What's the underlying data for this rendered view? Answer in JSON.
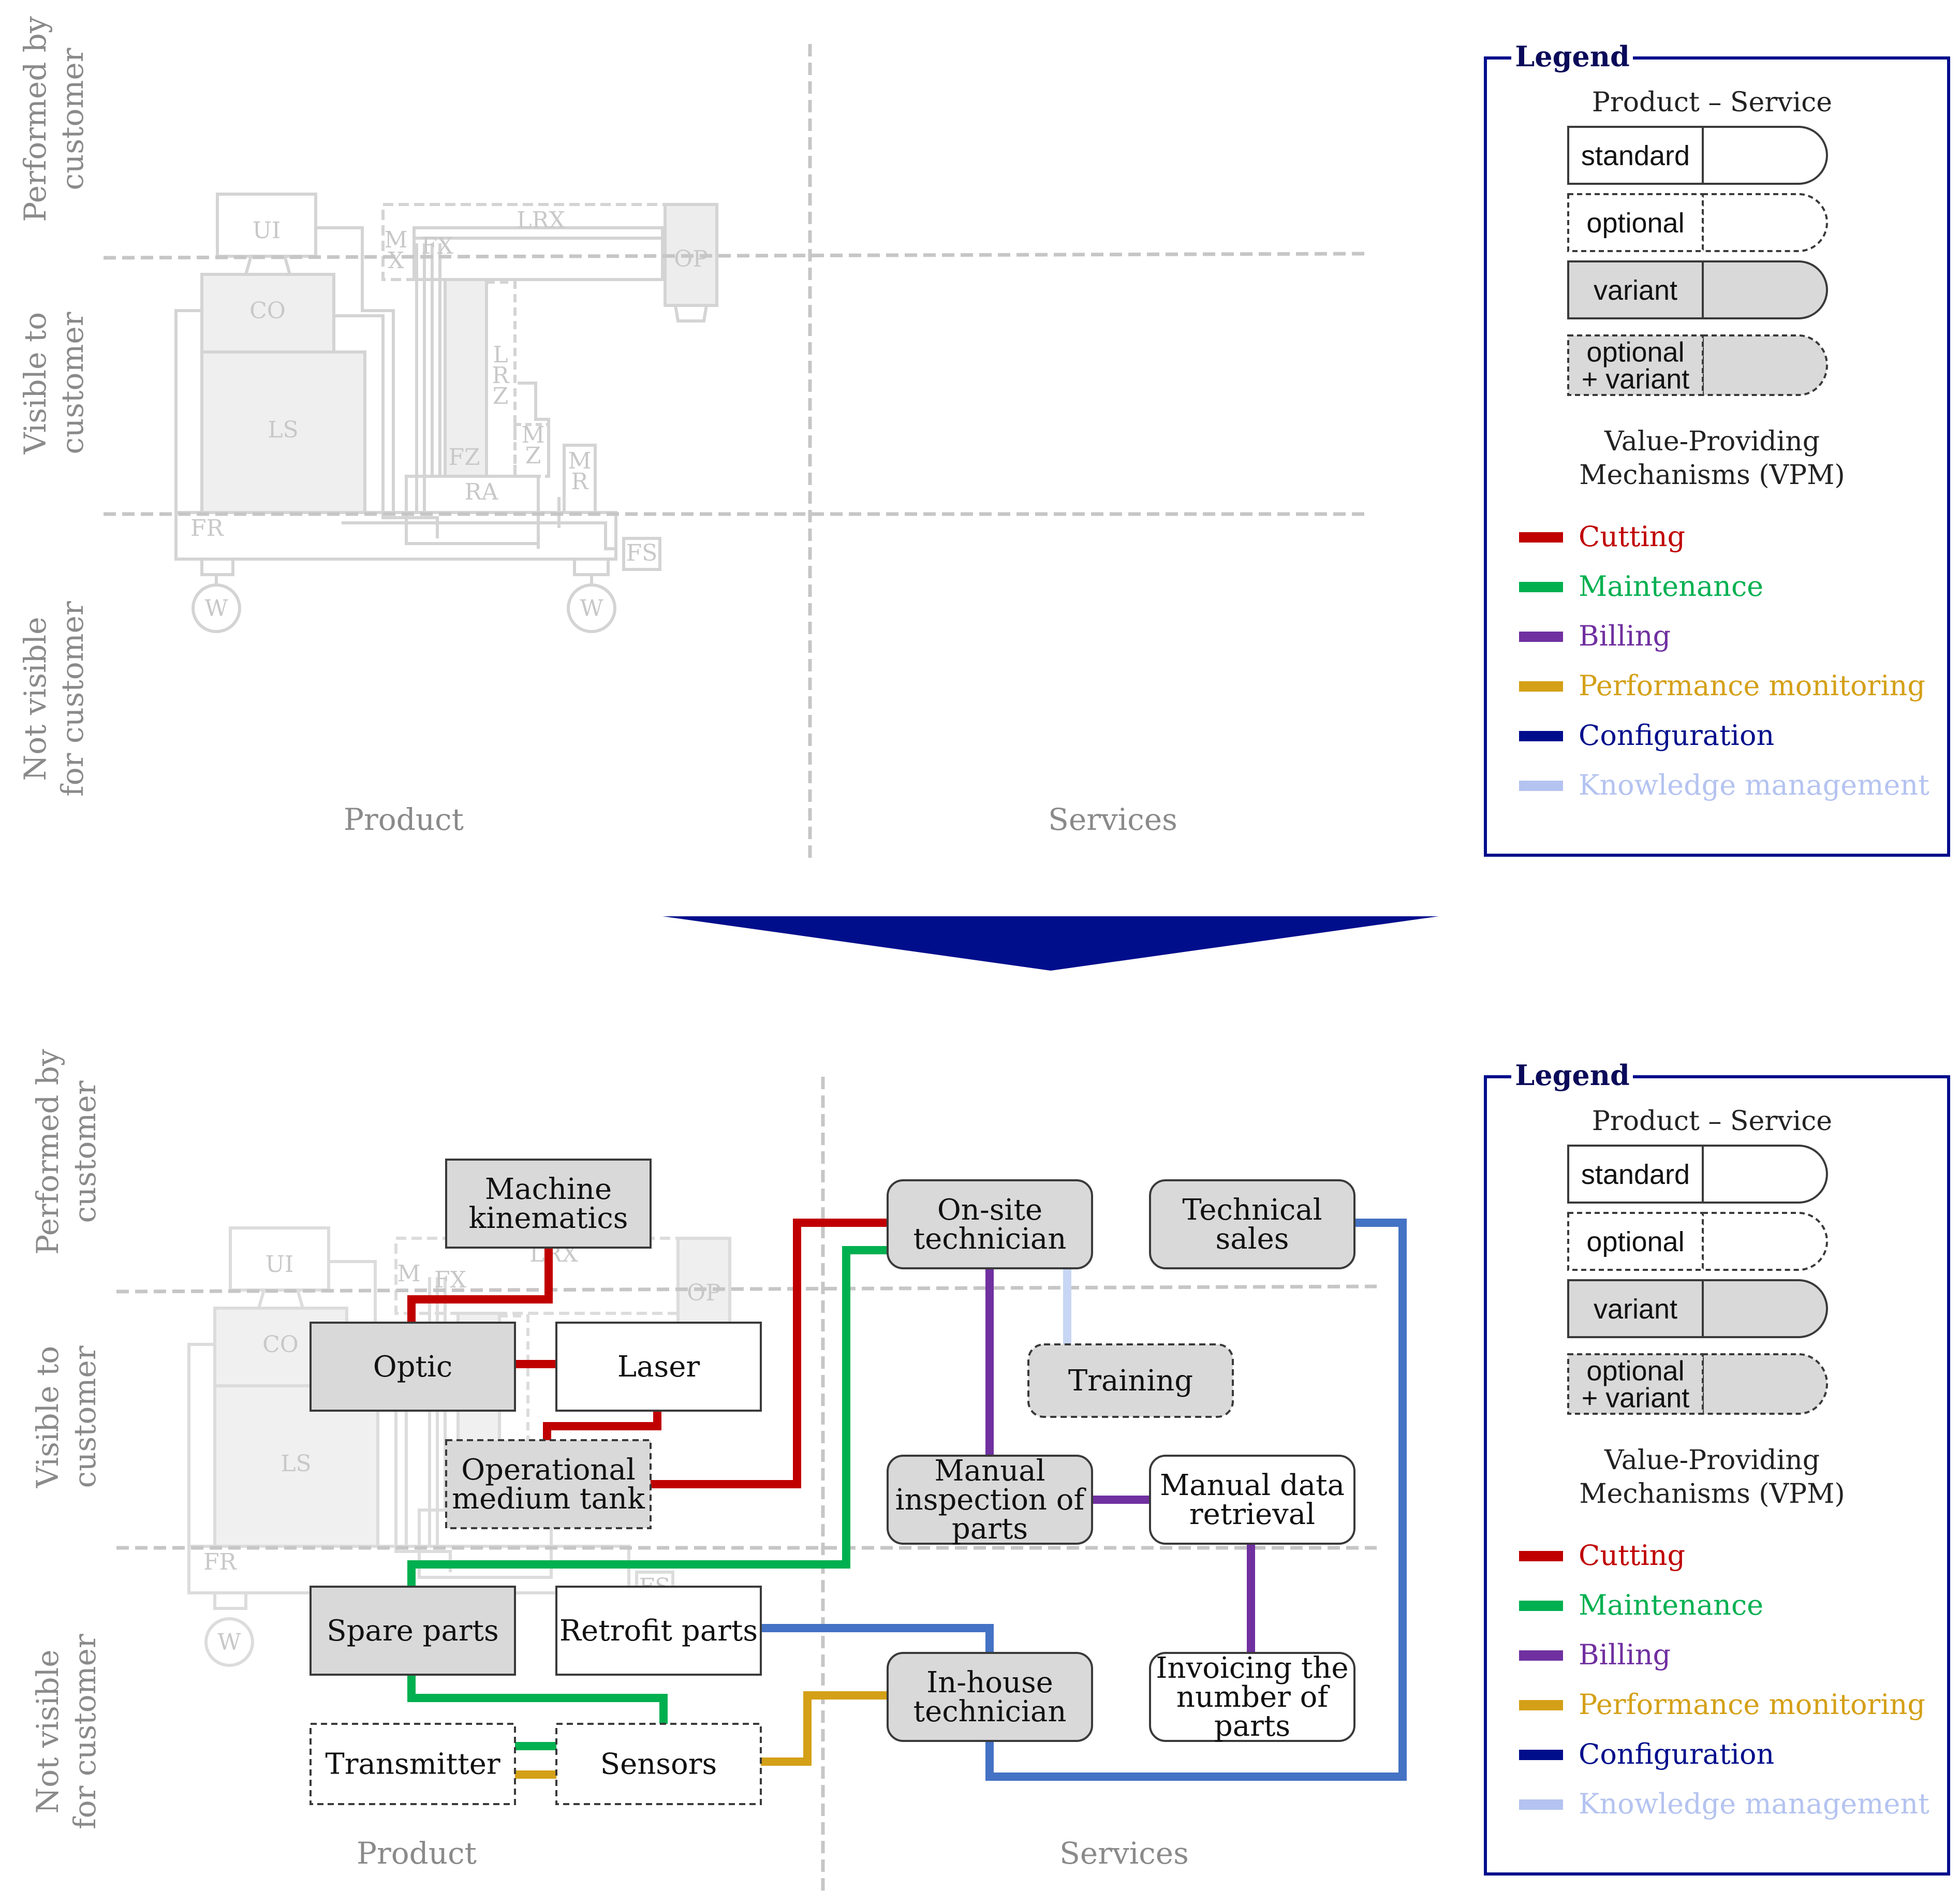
{
  "zones": {
    "performed": [
      "Performed by",
      "customer"
    ],
    "visible": [
      "Visible to",
      "customer"
    ],
    "not_visible": [
      "Not visible",
      "for customer"
    ]
  },
  "axes": {
    "product": "Product",
    "services": "Services"
  },
  "machine_labels": {
    "ui": "UI",
    "co": "CO",
    "ls": "LS",
    "lrx": "LRX",
    "mx": [
      "M",
      "X"
    ],
    "fx": "FX",
    "op": "OP",
    "lrz": [
      "L",
      "R",
      "Z"
    ],
    "fz": "FZ",
    "mz": [
      "M",
      "Z"
    ],
    "mr": [
      "M",
      "R"
    ],
    "ra": "RA",
    "fr": "FR",
    "fs": "FS",
    "w": "W"
  },
  "legend": {
    "title": "Legend",
    "product_service": "Product – Service",
    "samples": [
      {
        "type": "standard",
        "lines": [
          "standard"
        ]
      },
      {
        "type": "optional",
        "lines": [
          "optional"
        ]
      },
      {
        "type": "variant",
        "lines": [
          "variant"
        ]
      },
      {
        "type": "optional-variant",
        "lines": [
          "optional",
          "+ variant"
        ]
      }
    ],
    "vpm_title": [
      "Value-Providing",
      "Mechanisms (VPM)"
    ],
    "vpm": [
      {
        "key": "cutting",
        "label": "Cutting",
        "color": "#c00000"
      },
      {
        "key": "maintenance",
        "label": "Maintenance",
        "color": "#00b050"
      },
      {
        "key": "billing",
        "label": "Billing",
        "color": "#7030a0"
      },
      {
        "key": "performance",
        "label": "Performance monitoring",
        "color": "#d4a017"
      },
      {
        "key": "configuration",
        "label": "Configuration",
        "color": "#000e8c"
      },
      {
        "key": "knowledge",
        "label": "Knowledge management",
        "color": "#b4c3f0"
      }
    ]
  },
  "arrow_color": "#000e8c",
  "frame_color": "#000e8c",
  "connector_colors": {
    "cutting": "#c00000",
    "maintenance": "#00b050",
    "billing": "#7030a0",
    "performance": "#d4a017",
    "configuration": "#4472c4",
    "knowledge": "#c8d6f5"
  },
  "nodes": [
    {
      "id": "machine-kinematics",
      "type": "variant",
      "lines": [
        "Machine",
        "kinematics"
      ]
    },
    {
      "id": "optic",
      "type": "variant",
      "lines": [
        "Optic"
      ]
    },
    {
      "id": "laser",
      "type": "standard",
      "lines": [
        "Laser"
      ]
    },
    {
      "id": "operational-medium-tank",
      "type": "optional-variant",
      "lines": [
        "Operational",
        "medium tank"
      ]
    },
    {
      "id": "spare-parts",
      "type": "variant",
      "lines": [
        "Spare parts"
      ]
    },
    {
      "id": "retrofit-parts",
      "type": "standard",
      "lines": [
        "Retrofit parts"
      ]
    },
    {
      "id": "transmitter",
      "type": "optional",
      "lines": [
        "Transmitter"
      ]
    },
    {
      "id": "sensors",
      "type": "optional",
      "lines": [
        "Sensors"
      ]
    },
    {
      "id": "on-site-technician",
      "type": "variant-service",
      "lines": [
        "On-site",
        "technician"
      ]
    },
    {
      "id": "technical-sales",
      "type": "variant-service",
      "lines": [
        "Technical",
        "sales"
      ]
    },
    {
      "id": "training",
      "type": "optional-variant-service",
      "lines": [
        "Training"
      ]
    },
    {
      "id": "manual-inspection",
      "type": "variant-service",
      "lines": [
        "Manual",
        "inspection of",
        "parts"
      ]
    },
    {
      "id": "manual-data-retrieval",
      "type": "standard-service",
      "lines": [
        "Manual data",
        "retrieval"
      ]
    },
    {
      "id": "in-house-technician",
      "type": "variant-service",
      "lines": [
        "In-house",
        "technician"
      ]
    },
    {
      "id": "invoicing",
      "type": "standard-service",
      "lines": [
        "Invoicing the",
        "number of",
        "parts"
      ]
    }
  ]
}
